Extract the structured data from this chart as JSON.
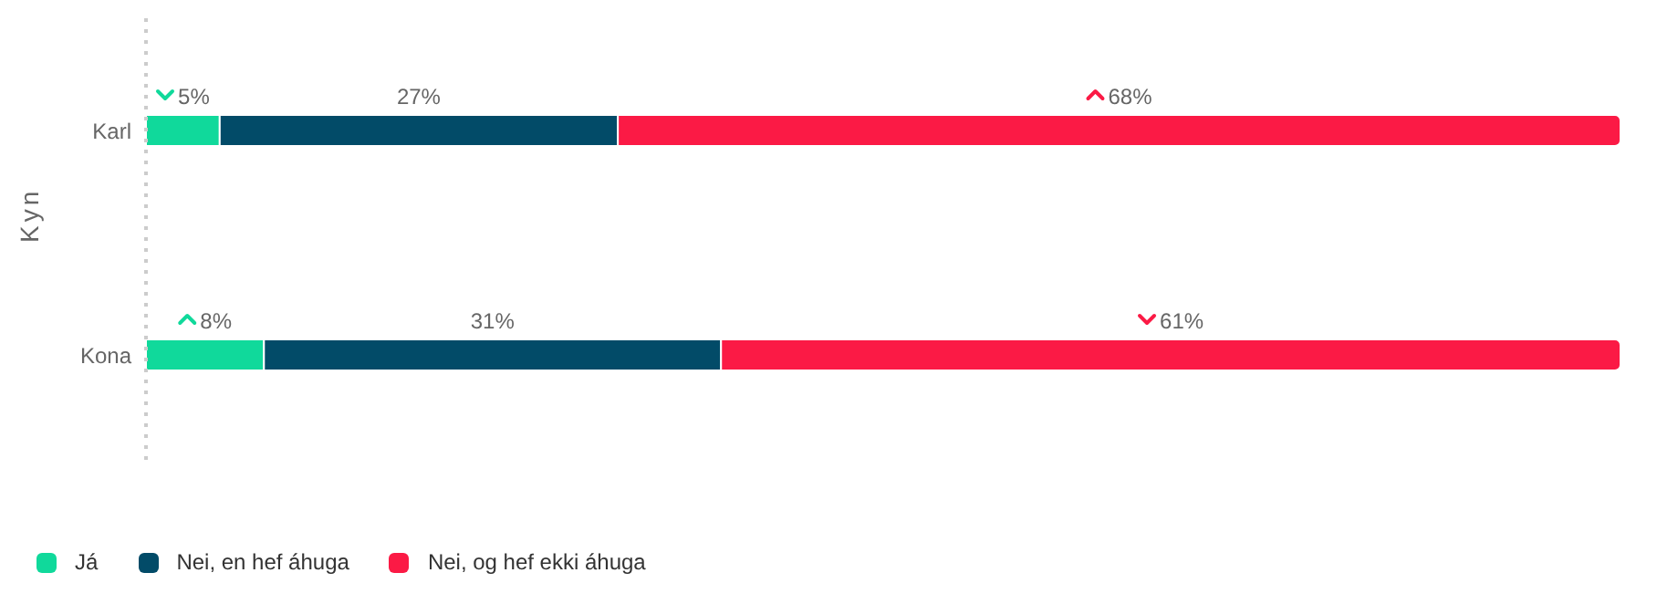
{
  "chart_data": {
    "type": "bar",
    "orientation": "horizontal",
    "stacked": true,
    "ylabel": "Kyn",
    "categories": [
      "Karl",
      "Kona"
    ],
    "data_labels": true,
    "legend": "bottom left",
    "series": [
      {
        "name": "Já",
        "color": "#10d99b",
        "values": [
          5,
          8
        ],
        "value_labels": [
          "5%",
          "8%"
        ]
      },
      {
        "name": "Nei, en hef áhuga",
        "color": "#024b68",
        "values": [
          27,
          31
        ],
        "value_labels": [
          "27%",
          "31%"
        ]
      },
      {
        "name": "Nei, og hef ekki áhuga",
        "color": "#fb1a45",
        "values": [
          68,
          61
        ],
        "value_labels": [
          "68%",
          "61%"
        ]
      }
    ]
  }
}
